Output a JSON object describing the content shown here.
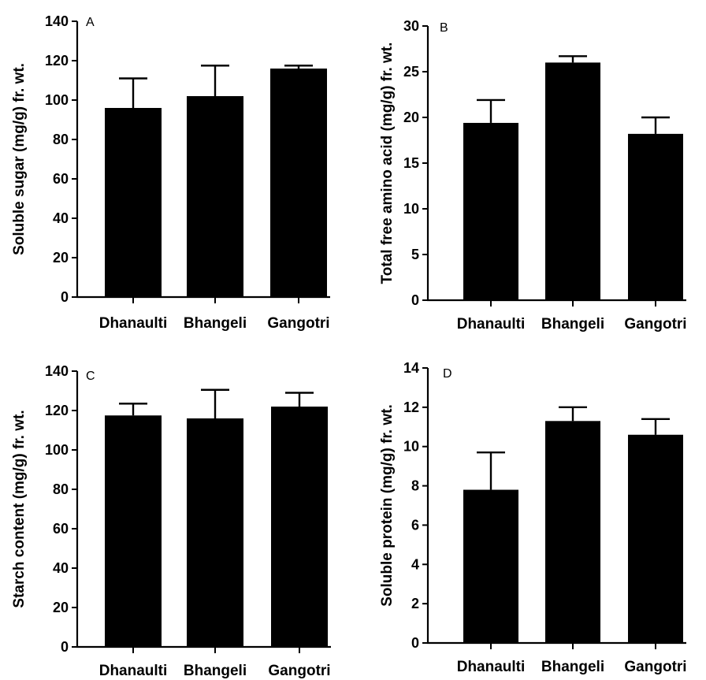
{
  "chart_data": [
    {
      "type": "bar",
      "panel_label": "A",
      "ylabel": "Soluble sugar (mg/g) fr. wt.",
      "categories": [
        "Dhanaulti",
        "Bhangeli",
        "Gangotri"
      ],
      "values": [
        96,
        102,
        116
      ],
      "error": [
        15,
        15.5,
        1.5
      ],
      "ylim": [
        0,
        140
      ],
      "yticks": [
        0,
        20,
        40,
        60,
        80,
        100,
        120,
        140
      ],
      "ytick_labels": [
        "0",
        "20",
        "40",
        "60",
        "80",
        "100",
        "120",
        "140"
      ],
      "bar_color": "#000000",
      "grid": false
    },
    {
      "type": "bar",
      "panel_label": "B",
      "ylabel": "Total free amino acid (mg/g) fr. wt.",
      "categories": [
        "Dhanaulti",
        "Bhangeli",
        "Gangotri"
      ],
      "values": [
        19.4,
        26,
        18.2
      ],
      "error": [
        2.5,
        0.7,
        1.8
      ],
      "ylim": [
        0,
        30
      ],
      "yticks": [
        0,
        5,
        10,
        15,
        20,
        25,
        30
      ],
      "ytick_labels": [
        "0",
        "5",
        "10",
        "15",
        "20",
        "25",
        "30"
      ],
      "bar_color": "#000000",
      "grid": false
    },
    {
      "type": "bar",
      "panel_label": "C",
      "ylabel": "Starch content (mg/g) fr. wt.",
      "categories": [
        "Dhanaulti",
        "Bhangeli",
        "Gangotri"
      ],
      "values": [
        117.5,
        116,
        122
      ],
      "error": [
        6,
        14.5,
        7
      ],
      "ylim": [
        0,
        140
      ],
      "yticks": [
        0,
        20,
        40,
        60,
        80,
        100,
        120,
        140
      ],
      "ytick_labels": [
        "0",
        "20",
        "40",
        "60",
        "80",
        "100",
        "120",
        "140"
      ],
      "bar_color": "#000000",
      "grid": false
    },
    {
      "type": "bar",
      "panel_label": "D",
      "ylabel": "Soluble protein (mg/g) fr. wt.",
      "categories": [
        "Dhanaulti",
        "Bhangeli",
        "Gangotri"
      ],
      "values": [
        7.8,
        11.3,
        10.6
      ],
      "error": [
        1.9,
        0.7,
        0.8
      ],
      "ylim": [
        0,
        14
      ],
      "yticks": [
        0,
        2,
        4,
        6,
        8,
        10,
        12,
        14
      ],
      "ytick_labels": [
        "0",
        "2",
        "4",
        "6",
        "8",
        "10",
        "12",
        "14"
      ],
      "bar_color": "#000000",
      "grid": false
    }
  ]
}
